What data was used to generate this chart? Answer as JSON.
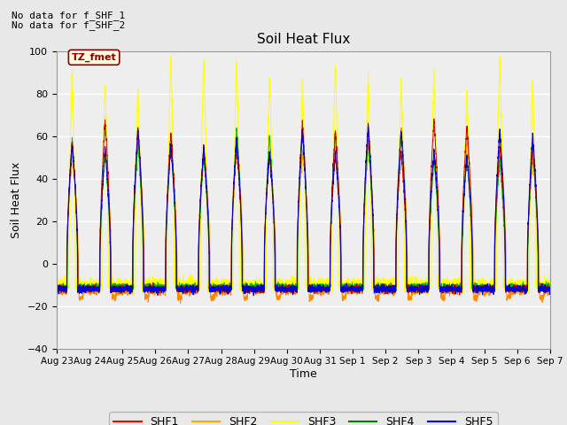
{
  "title": "Soil Heat Flux",
  "ylabel": "Soil Heat Flux",
  "xlabel": "Time",
  "ylim": [
    -40,
    100
  ],
  "fig_bg_color": "#e8e8e8",
  "plot_bg_color": "#eeeeee",
  "annotation_text1": "No data for f_SHF_1",
  "annotation_text2": "No data for f_SHF_2",
  "tz_label": "TZ_fmet",
  "legend_entries": [
    "SHF1",
    "SHF2",
    "SHF3",
    "SHF4",
    "SHF5"
  ],
  "line_colors": [
    "#cc0000",
    "#ff8800",
    "#ffff00",
    "#00bb00",
    "#0000cc"
  ],
  "x_tick_labels": [
    "Aug 23",
    "Aug 24",
    "Aug 25",
    "Aug 26",
    "Aug 27",
    "Aug 28",
    "Aug 29",
    "Aug 30",
    "Aug 31",
    "Sep 1",
    "Sep 2",
    "Sep 3",
    "Sep 4",
    "Sep 5",
    "Sep 6",
    "Sep 7"
  ],
  "n_days": 15,
  "yticks": [
    -40,
    -20,
    0,
    20,
    40,
    60,
    80,
    100
  ]
}
